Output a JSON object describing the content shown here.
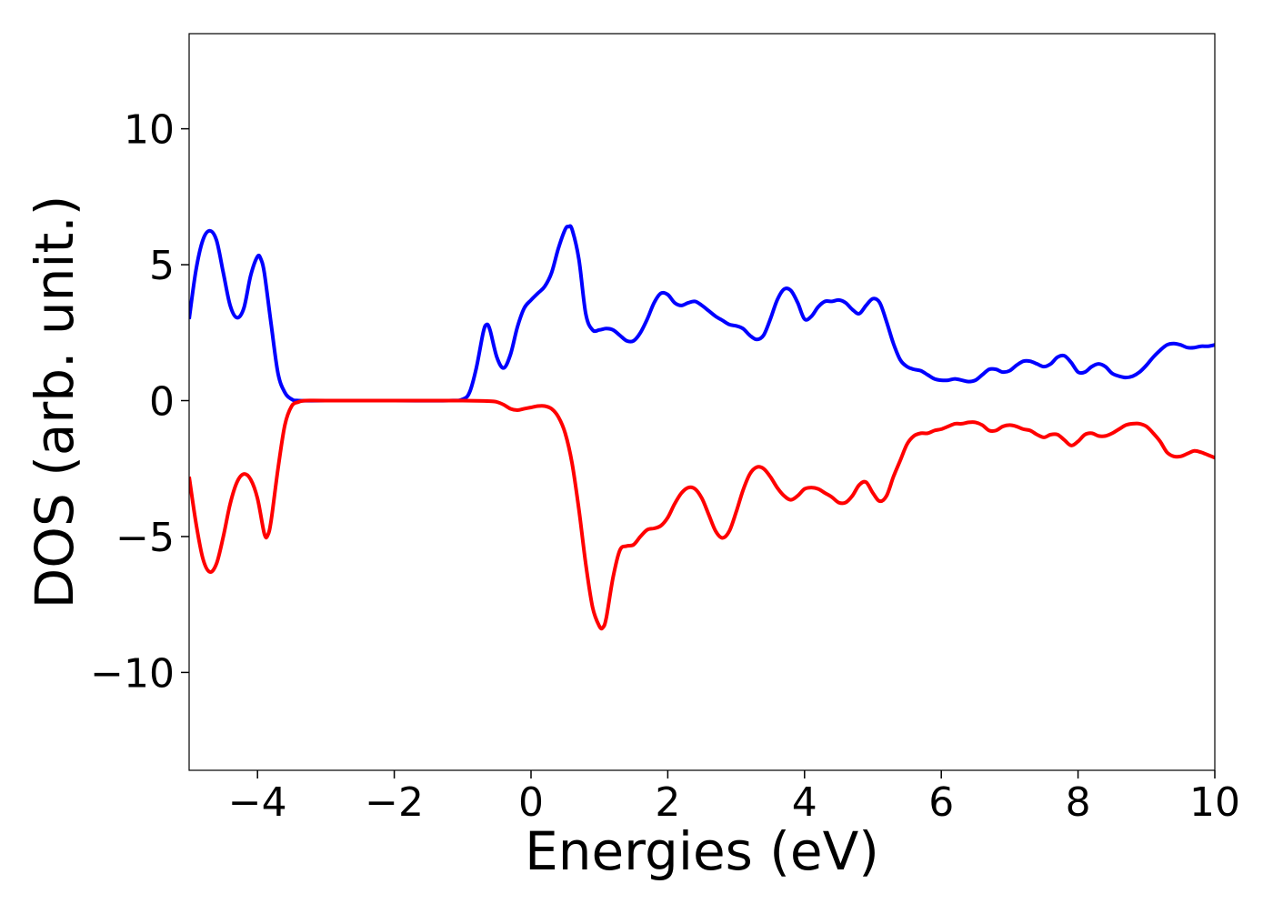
{
  "chart_data": {
    "type": "line",
    "title": "",
    "xlabel": "Energies (eV)",
    "ylabel": "DOS (arb. unit.)",
    "xlim": [
      -5,
      10
    ],
    "ylim": [
      -13.6,
      13.5
    ],
    "xticks": [
      -4,
      -2,
      0,
      2,
      4,
      6,
      8,
      10
    ],
    "xtick_labels": [
      "−4",
      "−2",
      "0",
      "2",
      "4",
      "6",
      "8",
      "10"
    ],
    "yticks": [
      10,
      5,
      0,
      -5,
      -10
    ],
    "ytick_labels": [
      "10",
      "5",
      "0",
      "−5",
      "−10"
    ],
    "grid": false,
    "legend": "none",
    "series": [
      {
        "color": "#0000ff",
        "points": [
          [
            -5.0,
            3.0
          ],
          [
            -4.9,
            4.8
          ],
          [
            -4.8,
            5.9
          ],
          [
            -4.7,
            6.25
          ],
          [
            -4.6,
            5.9
          ],
          [
            -4.5,
            4.7
          ],
          [
            -4.4,
            3.5
          ],
          [
            -4.3,
            3.05
          ],
          [
            -4.2,
            3.4
          ],
          [
            -4.1,
            4.6
          ],
          [
            -4.0,
            5.3
          ],
          [
            -3.95,
            5.2
          ],
          [
            -3.9,
            4.7
          ],
          [
            -3.8,
            2.8
          ],
          [
            -3.7,
            1.0
          ],
          [
            -3.6,
            0.3
          ],
          [
            -3.5,
            0.05
          ],
          [
            -3.4,
            0.0
          ],
          [
            -3.0,
            0.0
          ],
          [
            -2.0,
            0.0
          ],
          [
            -1.2,
            0.0
          ],
          [
            -1.0,
            0.05
          ],
          [
            -0.9,
            0.3
          ],
          [
            -0.8,
            1.2
          ],
          [
            -0.7,
            2.5
          ],
          [
            -0.65,
            2.8
          ],
          [
            -0.6,
            2.6
          ],
          [
            -0.5,
            1.6
          ],
          [
            -0.4,
            1.2
          ],
          [
            -0.3,
            1.7
          ],
          [
            -0.2,
            2.7
          ],
          [
            -0.1,
            3.4
          ],
          [
            0.0,
            3.7
          ],
          [
            0.1,
            3.95
          ],
          [
            0.2,
            4.2
          ],
          [
            0.3,
            4.7
          ],
          [
            0.4,
            5.6
          ],
          [
            0.5,
            6.3
          ],
          [
            0.55,
            6.4
          ],
          [
            0.6,
            6.3
          ],
          [
            0.7,
            5.2
          ],
          [
            0.8,
            3.2
          ],
          [
            0.9,
            2.6
          ],
          [
            1.0,
            2.6
          ],
          [
            1.1,
            2.65
          ],
          [
            1.2,
            2.6
          ],
          [
            1.3,
            2.4
          ],
          [
            1.4,
            2.2
          ],
          [
            1.5,
            2.2
          ],
          [
            1.6,
            2.5
          ],
          [
            1.7,
            3.0
          ],
          [
            1.8,
            3.6
          ],
          [
            1.9,
            3.95
          ],
          [
            2.0,
            3.9
          ],
          [
            2.1,
            3.6
          ],
          [
            2.2,
            3.5
          ],
          [
            2.3,
            3.6
          ],
          [
            2.4,
            3.65
          ],
          [
            2.5,
            3.5
          ],
          [
            2.6,
            3.3
          ],
          [
            2.7,
            3.1
          ],
          [
            2.8,
            2.95
          ],
          [
            2.9,
            2.8
          ],
          [
            3.0,
            2.75
          ],
          [
            3.1,
            2.65
          ],
          [
            3.2,
            2.4
          ],
          [
            3.3,
            2.25
          ],
          [
            3.4,
            2.4
          ],
          [
            3.5,
            3.0
          ],
          [
            3.6,
            3.7
          ],
          [
            3.7,
            4.1
          ],
          [
            3.8,
            4.05
          ],
          [
            3.9,
            3.6
          ],
          [
            4.0,
            3.0
          ],
          [
            4.1,
            3.1
          ],
          [
            4.2,
            3.45
          ],
          [
            4.3,
            3.65
          ],
          [
            4.4,
            3.65
          ],
          [
            4.5,
            3.7
          ],
          [
            4.6,
            3.6
          ],
          [
            4.7,
            3.35
          ],
          [
            4.8,
            3.2
          ],
          [
            4.9,
            3.5
          ],
          [
            5.0,
            3.75
          ],
          [
            5.1,
            3.6
          ],
          [
            5.2,
            2.9
          ],
          [
            5.3,
            2.1
          ],
          [
            5.4,
            1.5
          ],
          [
            5.5,
            1.25
          ],
          [
            5.6,
            1.15
          ],
          [
            5.7,
            1.1
          ],
          [
            5.8,
            0.95
          ],
          [
            5.9,
            0.8
          ],
          [
            6.0,
            0.75
          ],
          [
            6.1,
            0.75
          ],
          [
            6.2,
            0.8
          ],
          [
            6.3,
            0.75
          ],
          [
            6.4,
            0.7
          ],
          [
            6.5,
            0.75
          ],
          [
            6.6,
            0.95
          ],
          [
            6.7,
            1.15
          ],
          [
            6.8,
            1.15
          ],
          [
            6.9,
            1.05
          ],
          [
            7.0,
            1.1
          ],
          [
            7.1,
            1.3
          ],
          [
            7.2,
            1.45
          ],
          [
            7.3,
            1.45
          ],
          [
            7.4,
            1.35
          ],
          [
            7.5,
            1.25
          ],
          [
            7.6,
            1.35
          ],
          [
            7.7,
            1.6
          ],
          [
            7.8,
            1.65
          ],
          [
            7.9,
            1.4
          ],
          [
            8.0,
            1.05
          ],
          [
            8.1,
            1.05
          ],
          [
            8.2,
            1.25
          ],
          [
            8.3,
            1.35
          ],
          [
            8.4,
            1.25
          ],
          [
            8.5,
            1.0
          ],
          [
            8.6,
            0.9
          ],
          [
            8.7,
            0.85
          ],
          [
            8.8,
            0.9
          ],
          [
            8.9,
            1.05
          ],
          [
            9.0,
            1.3
          ],
          [
            9.1,
            1.6
          ],
          [
            9.2,
            1.85
          ],
          [
            9.3,
            2.05
          ],
          [
            9.4,
            2.1
          ],
          [
            9.5,
            2.05
          ],
          [
            9.6,
            1.95
          ],
          [
            9.7,
            1.95
          ],
          [
            9.8,
            2.0
          ],
          [
            9.9,
            2.0
          ],
          [
            10.0,
            2.05
          ]
        ]
      },
      {
        "color": "#ff0000",
        "points": [
          [
            -5.0,
            -2.8
          ],
          [
            -4.9,
            -4.5
          ],
          [
            -4.8,
            -5.8
          ],
          [
            -4.7,
            -6.3
          ],
          [
            -4.6,
            -6.0
          ],
          [
            -4.5,
            -5.0
          ],
          [
            -4.4,
            -3.8
          ],
          [
            -4.3,
            -3.0
          ],
          [
            -4.2,
            -2.7
          ],
          [
            -4.1,
            -2.9
          ],
          [
            -4.0,
            -3.6
          ],
          [
            -3.9,
            -4.9
          ],
          [
            -3.85,
            -4.95
          ],
          [
            -3.8,
            -4.4
          ],
          [
            -3.7,
            -2.5
          ],
          [
            -3.6,
            -0.9
          ],
          [
            -3.5,
            -0.2
          ],
          [
            -3.4,
            -0.05
          ],
          [
            -3.3,
            0.0
          ],
          [
            -3.0,
            0.0
          ],
          [
            -2.0,
            0.0
          ],
          [
            -1.0,
            0.0
          ],
          [
            -0.6,
            -0.02
          ],
          [
            -0.5,
            -0.05
          ],
          [
            -0.4,
            -0.15
          ],
          [
            -0.3,
            -0.3
          ],
          [
            -0.2,
            -0.35
          ],
          [
            -0.1,
            -0.3
          ],
          [
            0.0,
            -0.25
          ],
          [
            0.1,
            -0.2
          ],
          [
            0.2,
            -0.2
          ],
          [
            0.3,
            -0.3
          ],
          [
            0.4,
            -0.6
          ],
          [
            0.5,
            -1.2
          ],
          [
            0.6,
            -2.3
          ],
          [
            0.7,
            -4.0
          ],
          [
            0.8,
            -6.0
          ],
          [
            0.9,
            -7.6
          ],
          [
            1.0,
            -8.3
          ],
          [
            1.05,
            -8.35
          ],
          [
            1.1,
            -8.0
          ],
          [
            1.2,
            -6.5
          ],
          [
            1.3,
            -5.5
          ],
          [
            1.4,
            -5.35
          ],
          [
            1.5,
            -5.3
          ],
          [
            1.6,
            -5.0
          ],
          [
            1.7,
            -4.75
          ],
          [
            1.8,
            -4.7
          ],
          [
            1.9,
            -4.6
          ],
          [
            2.0,
            -4.3
          ],
          [
            2.1,
            -3.8
          ],
          [
            2.2,
            -3.4
          ],
          [
            2.3,
            -3.2
          ],
          [
            2.4,
            -3.25
          ],
          [
            2.5,
            -3.6
          ],
          [
            2.6,
            -4.2
          ],
          [
            2.7,
            -4.8
          ],
          [
            2.8,
            -5.05
          ],
          [
            2.9,
            -4.8
          ],
          [
            3.0,
            -4.1
          ],
          [
            3.1,
            -3.3
          ],
          [
            3.2,
            -2.7
          ],
          [
            3.3,
            -2.45
          ],
          [
            3.4,
            -2.5
          ],
          [
            3.5,
            -2.8
          ],
          [
            3.6,
            -3.2
          ],
          [
            3.7,
            -3.5
          ],
          [
            3.8,
            -3.65
          ],
          [
            3.9,
            -3.5
          ],
          [
            4.0,
            -3.25
          ],
          [
            4.1,
            -3.2
          ],
          [
            4.2,
            -3.25
          ],
          [
            4.3,
            -3.4
          ],
          [
            4.4,
            -3.55
          ],
          [
            4.5,
            -3.75
          ],
          [
            4.6,
            -3.75
          ],
          [
            4.7,
            -3.5
          ],
          [
            4.8,
            -3.1
          ],
          [
            4.9,
            -3.0
          ],
          [
            5.0,
            -3.4
          ],
          [
            5.1,
            -3.7
          ],
          [
            5.2,
            -3.5
          ],
          [
            5.3,
            -2.8
          ],
          [
            5.4,
            -2.2
          ],
          [
            5.5,
            -1.6
          ],
          [
            5.6,
            -1.3
          ],
          [
            5.7,
            -1.2
          ],
          [
            5.8,
            -1.2
          ],
          [
            5.9,
            -1.1
          ],
          [
            6.0,
            -1.05
          ],
          [
            6.1,
            -0.95
          ],
          [
            6.2,
            -0.85
          ],
          [
            6.3,
            -0.85
          ],
          [
            6.4,
            -0.8
          ],
          [
            6.5,
            -0.8
          ],
          [
            6.6,
            -0.9
          ],
          [
            6.7,
            -1.1
          ],
          [
            6.8,
            -1.1
          ],
          [
            6.9,
            -0.95
          ],
          [
            7.0,
            -0.9
          ],
          [
            7.1,
            -0.95
          ],
          [
            7.2,
            -1.05
          ],
          [
            7.3,
            -1.1
          ],
          [
            7.4,
            -1.25
          ],
          [
            7.5,
            -1.35
          ],
          [
            7.6,
            -1.25
          ],
          [
            7.7,
            -1.25
          ],
          [
            7.8,
            -1.45
          ],
          [
            7.9,
            -1.65
          ],
          [
            8.0,
            -1.5
          ],
          [
            8.1,
            -1.25
          ],
          [
            8.2,
            -1.2
          ],
          [
            8.3,
            -1.3
          ],
          [
            8.4,
            -1.3
          ],
          [
            8.5,
            -1.2
          ],
          [
            8.6,
            -1.05
          ],
          [
            8.7,
            -0.9
          ],
          [
            8.8,
            -0.85
          ],
          [
            8.9,
            -0.85
          ],
          [
            9.0,
            -0.95
          ],
          [
            9.1,
            -1.2
          ],
          [
            9.2,
            -1.5
          ],
          [
            9.3,
            -1.9
          ],
          [
            9.4,
            -2.05
          ],
          [
            9.5,
            -2.05
          ],
          [
            9.6,
            -1.95
          ],
          [
            9.7,
            -1.85
          ],
          [
            9.8,
            -1.9
          ],
          [
            9.9,
            -2.0
          ],
          [
            10.0,
            -2.1
          ]
        ]
      }
    ]
  }
}
